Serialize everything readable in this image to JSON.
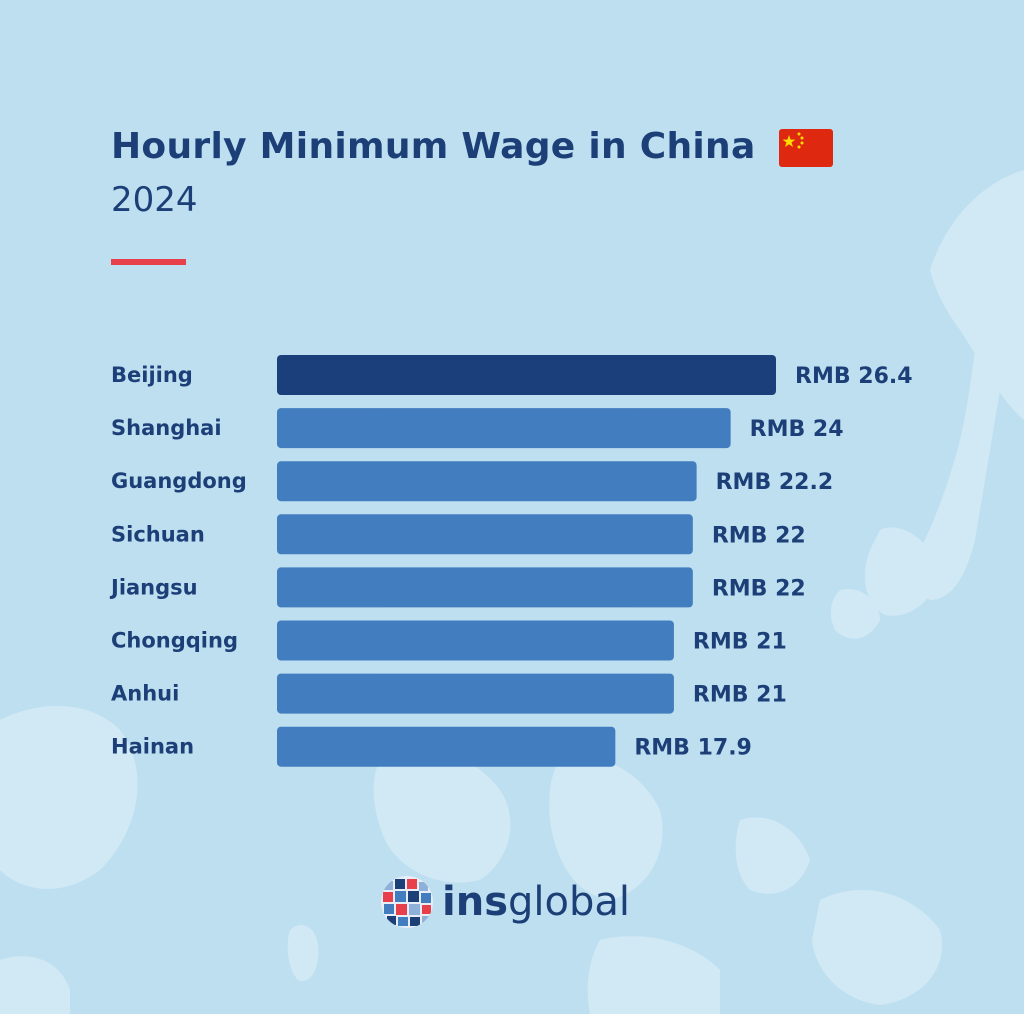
{
  "header": {
    "title": "Hourly Minimum Wage in China",
    "subtitle": "2024",
    "flag_icon": "china-flag-icon"
  },
  "colors": {
    "background": "#bedff0",
    "map_land": "#d1e9f5",
    "title_text": "#1c3f78",
    "accent_rule": "#e8404a",
    "bar_highlight": "#1b3f7a",
    "bar_default": "#427dc0",
    "flag_red": "#de2910",
    "flag_star": "#ffde00"
  },
  "chart_data": {
    "type": "bar",
    "orientation": "horizontal",
    "title": "Hourly Minimum Wage in China",
    "subtitle": "2024",
    "categories": [
      "Beijing",
      "Shanghai",
      "Guangdong",
      "Sichuan",
      "Jiangsu",
      "Chongqing",
      "Anhui",
      "Hainan"
    ],
    "values": [
      26.4,
      24,
      22.2,
      22,
      22,
      21,
      21,
      17.9
    ],
    "value_labels": [
      "RMB 26.4",
      "RMB 24",
      "RMB 22.2",
      "RMB 22",
      "RMB 22",
      "RMB 21",
      "RMB 21",
      "RMB 17.9"
    ],
    "unit": "RMB",
    "xlim": [
      0,
      26.4
    ],
    "highlighted_category": "Beijing",
    "grid": false,
    "legend": "none"
  },
  "logo": {
    "prefix": "ins",
    "suffix": "global",
    "icon": "globe-logo-icon"
  }
}
